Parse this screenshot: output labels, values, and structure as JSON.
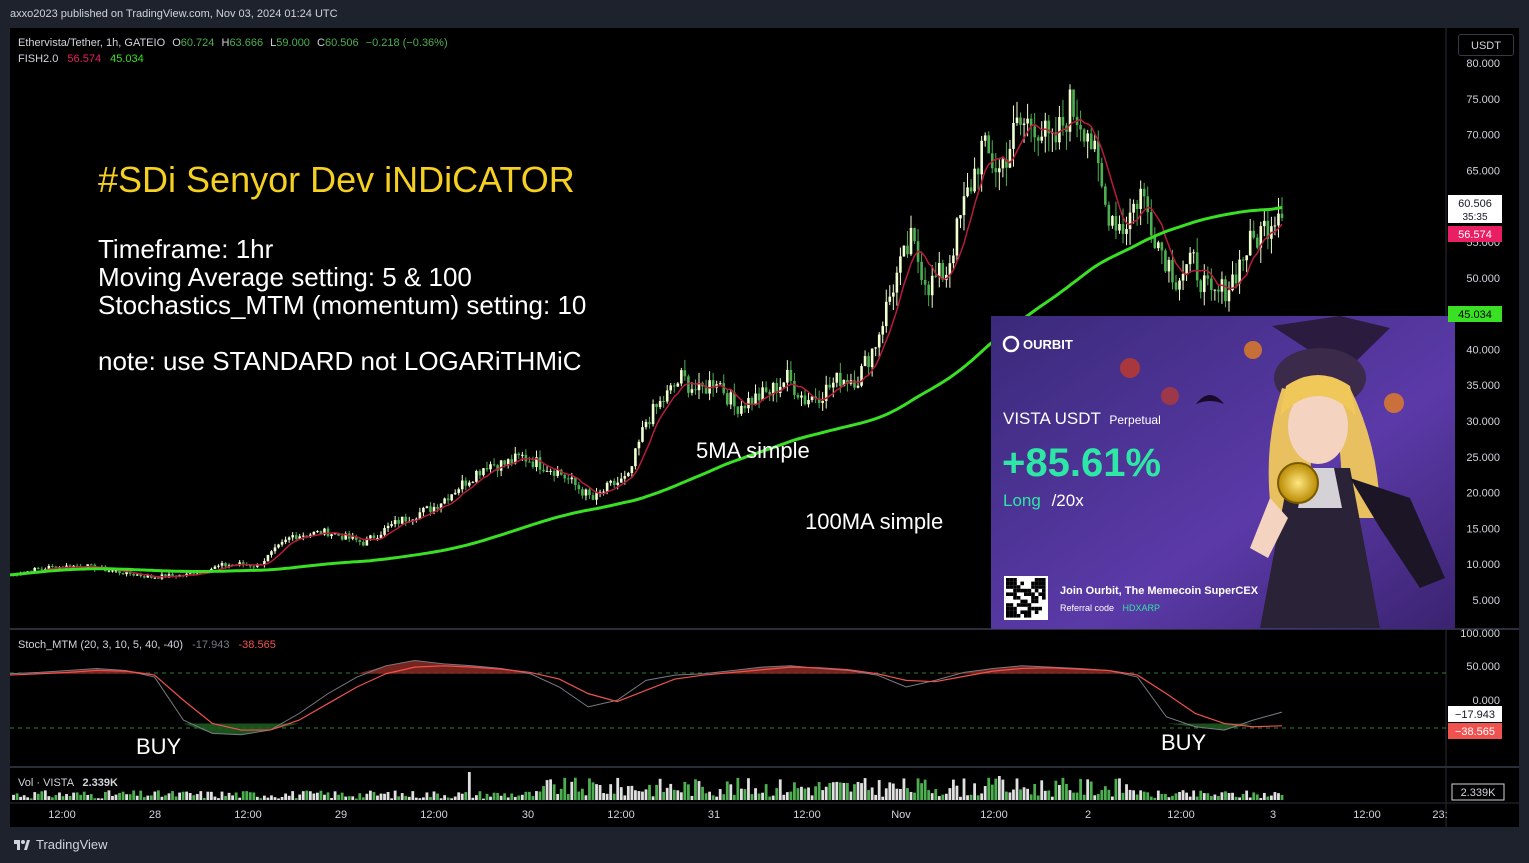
{
  "header": {
    "published": "axxo2023 published on TradingView.com, Nov 03, 2024 01:24 UTC"
  },
  "legend": {
    "symbol": "Ethervista/Tether, 1h, GATEIO",
    "o_label": "O",
    "o_value": "60.724",
    "h_label": "H",
    "h_value": "63.666",
    "l_label": "L",
    "l_value": "59.000",
    "c_label": "C",
    "c_value": "60.506",
    "change": "−0.218 (−0.36%)",
    "fish_name": "FISH2.0",
    "fish_val1": "56.574",
    "fish_val2": "45.034"
  },
  "currency_button": "USDT",
  "annotations": {
    "title": "#SDi Senyor Dev iNDiCATOR",
    "line1": "Timeframe: 1hr",
    "line2": "Moving Average setting:  5 & 100",
    "line3": "Stochastics_MTM (momentum) setting: 10",
    "note": "note: use STANDARD not LOGARiTHMiC",
    "ma5_label": "5MA simple",
    "ma100_label": "100MA simple",
    "buy_left": "BUY",
    "buy_right": "BUY"
  },
  "ad": {
    "brand": "OURBIT",
    "pair": "VISTA USDT",
    "pair_type": "Perpetual",
    "pnl": "+85.61%",
    "side": "Long",
    "leverage": "/20x",
    "join_text": "Join Ourbit, The Memecoin SuperCEX",
    "ref_label": "Referral code",
    "ref_code": "HDXARP",
    "coin_text": "VISTA"
  },
  "price_axis": {
    "ticks": [
      "80.000",
      "75.000",
      "70.000",
      "65.000",
      "60.000",
      "55.000",
      "50.000",
      "45.000",
      "40.000",
      "35.000",
      "30.000",
      "25.000",
      "20.000",
      "15.000",
      "10.000",
      "5.000"
    ],
    "last_price": "60.506",
    "countdown": "35:35",
    "ma5_value": "56.574",
    "ma100_value": "45.034"
  },
  "stoch": {
    "label": "Stoch_MTM (20, 3, 10, 5, 40, -40)",
    "v1": "-17.943",
    "v2": "-38.565",
    "axis_ticks": [
      "100.000",
      "50.000",
      "0.000"
    ],
    "badge1": "−17.943",
    "badge2": "−38.565"
  },
  "volume": {
    "label": "Vol · VISTA",
    "value": "2.339K",
    "badge": "2.339K"
  },
  "time_axis": [
    "12:00",
    "28",
    "12:00",
    "29",
    "12:00",
    "30",
    "12:00",
    "31",
    "12:00",
    "Nov",
    "12:00",
    "2",
    "12:00",
    "3",
    "12:00",
    "23:"
  ],
  "footer": {
    "brand": "TradingView"
  },
  "colors": {
    "up": "#f0ffd0",
    "down": "#4caf50",
    "ma5": "#b71c3c",
    "ma100": "#39e024",
    "stoch_fill_top": "#8b2a22",
    "stoch_fill_bottom": "#1e5a20",
    "title_yellow": "#f5d020"
  },
  "chart_data": {
    "type": "candlestick",
    "title": "Ethervista/Tether, 1h, GATEIO",
    "ylim": [
      0,
      82
    ],
    "x_labels": [
      "12:00",
      "28",
      "12:00",
      "29",
      "12:00",
      "30",
      "12:00",
      "31",
      "12:00",
      "Nov",
      "12:00",
      "2",
      "12:00",
      "3"
    ],
    "close_path": [
      [
        0,
        8.5
      ],
      [
        10,
        9.5
      ],
      [
        20,
        9.8
      ],
      [
        30,
        9.0
      ],
      [
        40,
        8.2
      ],
      [
        50,
        8.5
      ],
      [
        60,
        9.8
      ],
      [
        65,
        10
      ],
      [
        70,
        9.8
      ],
      [
        80,
        14
      ],
      [
        90,
        14.5
      ],
      [
        100,
        13
      ],
      [
        110,
        16
      ],
      [
        120,
        18
      ],
      [
        125,
        20
      ],
      [
        130,
        22
      ],
      [
        135,
        24
      ],
      [
        140,
        24
      ],
      [
        145,
        25
      ],
      [
        150,
        24
      ],
      [
        155,
        23
      ],
      [
        160,
        21
      ],
      [
        165,
        19
      ],
      [
        170,
        21
      ],
      [
        175,
        22
      ],
      [
        180,
        30
      ],
      [
        185,
        33
      ],
      [
        190,
        36
      ],
      [
        195,
        34
      ],
      [
        200,
        36
      ],
      [
        205,
        32
      ],
      [
        210,
        33
      ],
      [
        215,
        34
      ],
      [
        220,
        36
      ],
      [
        225,
        33
      ],
      [
        230,
        34
      ],
      [
        235,
        36
      ],
      [
        240,
        36
      ],
      [
        245,
        41
      ],
      [
        250,
        49
      ],
      [
        255,
        55
      ],
      [
        260,
        49
      ],
      [
        265,
        51
      ],
      [
        270,
        60
      ],
      [
        275,
        68
      ],
      [
        280,
        65
      ],
      [
        285,
        71
      ],
      [
        290,
        72
      ],
      [
        295,
        68
      ],
      [
        300,
        74
      ],
      [
        305,
        71
      ],
      [
        310,
        60
      ],
      [
        315,
        57
      ],
      [
        320,
        62
      ],
      [
        325,
        55
      ],
      [
        330,
        50
      ],
      [
        335,
        52
      ],
      [
        340,
        47
      ],
      [
        345,
        49
      ],
      [
        350,
        54
      ],
      [
        355,
        57
      ],
      [
        360,
        60.5
      ]
    ],
    "series": [
      {
        "name": "5MA simple",
        "type": "line"
      },
      {
        "name": "100MA simple",
        "type": "line"
      }
    ],
    "stoch": {
      "ylim": [
        -60,
        100
      ],
      "k": [
        40,
        42,
        45,
        48,
        45,
        35,
        -30,
        -50,
        -52,
        -45,
        -20,
        10,
        35,
        52,
        60,
        55,
        52,
        48,
        40,
        20,
        -10,
        0,
        30,
        38,
        40,
        45,
        50,
        52,
        48,
        45,
        38,
        20,
        30,
        42,
        48,
        52,
        50,
        48,
        45,
        35,
        -25,
        -40,
        -45,
        -30,
        -17.9
      ],
      "d": [
        38,
        40,
        42,
        45,
        44,
        38,
        0,
        -35,
        -45,
        -45,
        -30,
        -5,
        20,
        40,
        50,
        52,
        50,
        47,
        42,
        32,
        10,
        -2,
        15,
        32,
        38,
        42,
        46,
        50,
        49,
        46,
        40,
        30,
        28,
        36,
        44,
        48,
        49,
        47,
        45,
        38,
        10,
        -20,
        -35,
        -40,
        -38.6
      ]
    },
    "volume_last": 2339
  }
}
